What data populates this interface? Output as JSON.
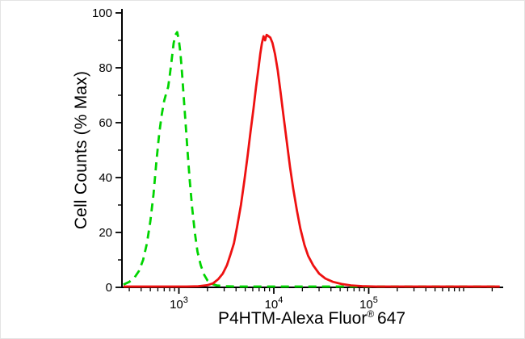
{
  "figure": {
    "background": "#ffffff",
    "axis_color": "#000000"
  },
  "chart_data": {
    "type": "line",
    "subtype": "flow-cytometry-histogram",
    "title": "",
    "grid": false,
    "legend": false,
    "x_axis": {
      "scale": "log",
      "log_min": 2.4,
      "log_max": 6.4,
      "title_main": "P4HTM-Alexa Fluor",
      "title_sup": "®",
      "title_suffix": "647",
      "major_ticks": [
        {
          "base": "10",
          "exp": "3",
          "value": 1000
        },
        {
          "base": "10",
          "exp": "4",
          "value": 10000
        },
        {
          "base": "10",
          "exp": "5",
          "value": 100000
        }
      ]
    },
    "y_axis": {
      "min": 0,
      "max": 100,
      "title": "Cell Counts (% Max)",
      "major_ticks": [
        0,
        20,
        40,
        60,
        80,
        100
      ],
      "minor_ticks": [
        10,
        30,
        50,
        70,
        90
      ]
    },
    "series": [
      {
        "name": "green-dashed-control",
        "style": "dashed",
        "color": "#00d400",
        "peak_x": 950,
        "peak_y": 93,
        "points": [
          [
            260,
            1
          ],
          [
            300,
            2
          ],
          [
            340,
            3.5
          ],
          [
            380,
            6
          ],
          [
            420,
            10
          ],
          [
            460,
            16
          ],
          [
            500,
            24
          ],
          [
            540,
            34
          ],
          [
            580,
            46
          ],
          [
            620,
            56
          ],
          [
            660,
            63
          ],
          [
            700,
            68
          ],
          [
            740,
            71
          ],
          [
            770,
            73
          ],
          [
            800,
            77
          ],
          [
            840,
            83
          ],
          [
            880,
            89
          ],
          [
            920,
            92
          ],
          [
            960,
            93
          ],
          [
            1000,
            90
          ],
          [
            1040,
            85
          ],
          [
            1080,
            78
          ],
          [
            1120,
            70
          ],
          [
            1170,
            61
          ],
          [
            1230,
            50
          ],
          [
            1300,
            39
          ],
          [
            1380,
            29
          ],
          [
            1470,
            20
          ],
          [
            1570,
            13
          ],
          [
            1700,
            8
          ],
          [
            1850,
            4.5
          ],
          [
            2000,
            2.5
          ],
          [
            2200,
            1.3
          ],
          [
            2500,
            0.7
          ],
          [
            3000,
            0.4
          ],
          [
            4000,
            0.3
          ],
          [
            7000,
            0.3
          ],
          [
            20000,
            0.3
          ],
          [
            100000,
            0.3
          ],
          [
            600000,
            0.3
          ],
          [
            2400000,
            0.3
          ]
        ]
      },
      {
        "name": "red-solid-stained",
        "style": "solid",
        "color": "#ee1111",
        "peak_x": 8400,
        "peak_y": 92,
        "points": [
          [
            260,
            0.3
          ],
          [
            600,
            0.3
          ],
          [
            1200,
            0.3
          ],
          [
            1600,
            0.4
          ],
          [
            2000,
            0.8
          ],
          [
            2300,
            1.5
          ],
          [
            2600,
            3
          ],
          [
            2900,
            5
          ],
          [
            3200,
            8
          ],
          [
            3500,
            12
          ],
          [
            3800,
            16
          ],
          [
            4100,
            22
          ],
          [
            4500,
            30
          ],
          [
            4900,
            39
          ],
          [
            5300,
            48
          ],
          [
            5700,
            57
          ],
          [
            6100,
            65
          ],
          [
            6500,
            73
          ],
          [
            6900,
            80
          ],
          [
            7200,
            85
          ],
          [
            7500,
            89
          ],
          [
            7800,
            91.5
          ],
          [
            8100,
            90
          ],
          [
            8400,
            92
          ],
          [
            8800,
            91.5
          ],
          [
            9200,
            91
          ],
          [
            9700,
            89
          ],
          [
            10300,
            85
          ],
          [
            11000,
            79
          ],
          [
            11800,
            71
          ],
          [
            12700,
            62
          ],
          [
            13700,
            53
          ],
          [
            14800,
            44
          ],
          [
            16000,
            36
          ],
          [
            17500,
            28
          ],
          [
            19000,
            21.5
          ],
          [
            21000,
            15.5
          ],
          [
            23000,
            11.5
          ],
          [
            26000,
            8
          ],
          [
            30000,
            5
          ],
          [
            35000,
            3.2
          ],
          [
            42000,
            2
          ],
          [
            52000,
            1.2
          ],
          [
            65000,
            0.7
          ],
          [
            85000,
            0.45
          ],
          [
            120000,
            0.3
          ],
          [
            300000,
            0.3
          ],
          [
            1000000,
            0.3
          ],
          [
            2400000,
            0.3
          ]
        ]
      }
    ]
  }
}
